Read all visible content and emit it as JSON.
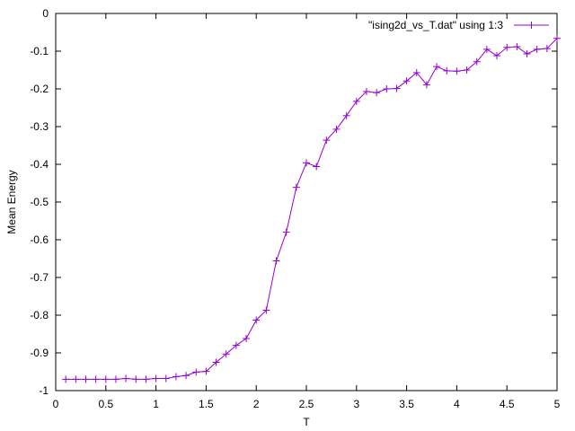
{
  "chart_data": {
    "type": "line",
    "title": "",
    "xlabel": "T",
    "ylabel": "Mean Energy",
    "xlim": [
      0,
      5
    ],
    "ylim": [
      -1,
      0
    ],
    "xticks": [
      0,
      0.5,
      1,
      1.5,
      2,
      2.5,
      3,
      3.5,
      4,
      4.5,
      5
    ],
    "xtick_labels": [
      "0",
      "0.5",
      "1",
      "1.5",
      "2",
      "2.5",
      "3",
      "3.5",
      "4",
      "4.5",
      "5"
    ],
    "yticks": [
      0,
      -0.1,
      -0.2,
      -0.3,
      -0.4,
      -0.5,
      -0.6,
      -0.7,
      -0.8,
      -0.9,
      -1
    ],
    "ytick_labels": [
      "0",
      "-0.1",
      "-0.2",
      "-0.3",
      "-0.4",
      "-0.5",
      "-0.6",
      "-0.7",
      "-0.8",
      "-0.9",
      "-1"
    ],
    "grid": false,
    "legend_position": "top-right",
    "series": [
      {
        "name": "\"ising2d_vs_T.dat\" using 1:3",
        "color": "#9400d3",
        "marker": "plus",
        "x": [
          0.1,
          0.2,
          0.3,
          0.4,
          0.5,
          0.6,
          0.7,
          0.8,
          0.9,
          1.0,
          1.1,
          1.2,
          1.3,
          1.4,
          1.5,
          1.6,
          1.7,
          1.8,
          1.9,
          2.0,
          2.1,
          2.2,
          2.3,
          2.4,
          2.5,
          2.6,
          2.7,
          2.8,
          2.9,
          3.0,
          3.1,
          3.2,
          3.3,
          3.4,
          3.5,
          3.6,
          3.7,
          3.8,
          3.9,
          4.0,
          4.1,
          4.2,
          4.3,
          4.4,
          4.5,
          4.6,
          4.7,
          4.8,
          4.9,
          5.0
        ],
        "y": [
          -0.97,
          -0.97,
          -0.97,
          -0.97,
          -0.97,
          -0.97,
          -0.968,
          -0.97,
          -0.97,
          -0.968,
          -0.968,
          -0.963,
          -0.96,
          -0.951,
          -0.949,
          -0.925,
          -0.903,
          -0.88,
          -0.862,
          -0.813,
          -0.787,
          -0.656,
          -0.58,
          -0.461,
          -0.396,
          -0.406,
          -0.336,
          -0.307,
          -0.271,
          -0.233,
          -0.207,
          -0.21,
          -0.2,
          -0.199,
          -0.179,
          -0.157,
          -0.189,
          -0.141,
          -0.152,
          -0.153,
          -0.15,
          -0.128,
          -0.095,
          -0.112,
          -0.09,
          -0.088,
          -0.107,
          -0.095,
          -0.093,
          -0.066
        ]
      }
    ]
  }
}
